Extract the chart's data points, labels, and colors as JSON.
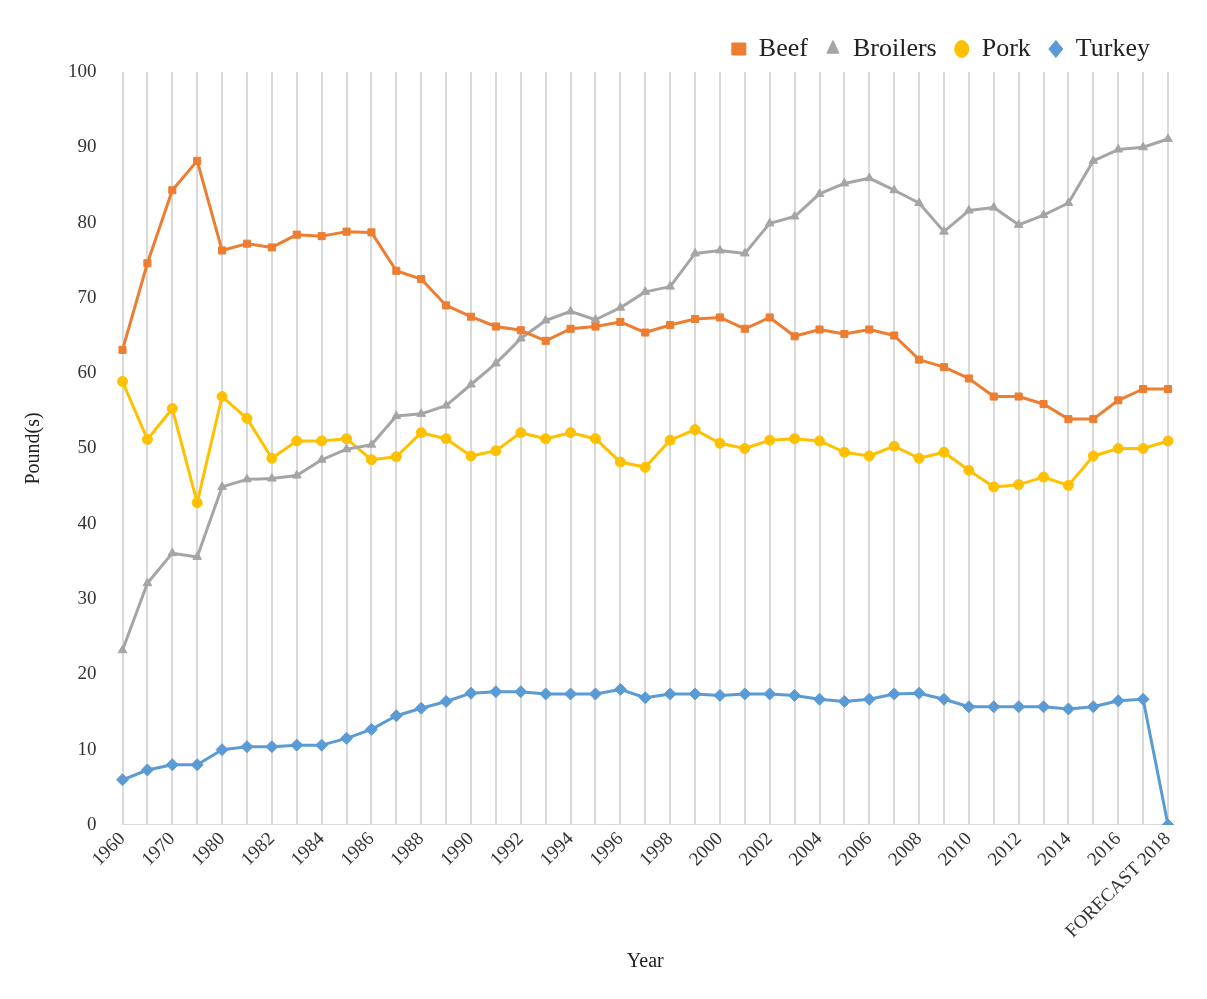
{
  "chart_data": {
    "type": "line",
    "xlabel": "Year",
    "ylabel": "Pound(s)",
    "categories": [
      "1960",
      null,
      "1970",
      null,
      "1980",
      null,
      "1982",
      null,
      "1984",
      null,
      "1986",
      null,
      "1988",
      null,
      "1990",
      null,
      "1992",
      null,
      "1994",
      null,
      "1996",
      null,
      "1998",
      null,
      "2000",
      null,
      "2002",
      null,
      "2004",
      null,
      "2006",
      null,
      "2008",
      null,
      "2010",
      null,
      "2012",
      null,
      "2014",
      null,
      "2016",
      null,
      "FORECAST 2018"
    ],
    "series": [
      {
        "name": "Beef",
        "color": "#ed7d31",
        "marker": "square",
        "values": [
          63.1,
          74.6,
          84.3,
          88.2,
          76.3,
          77.2,
          76.7,
          78.4,
          78.2,
          78.8,
          78.7,
          73.6,
          72.5,
          69.0,
          67.5,
          66.2,
          65.7,
          64.3,
          65.9,
          66.2,
          66.8,
          65.4,
          66.4,
          67.2,
          67.4,
          65.9,
          67.4,
          64.9,
          65.8,
          65.2,
          65.8,
          65.0,
          61.8,
          60.8,
          59.3,
          56.9,
          56.9,
          55.9,
          53.9,
          53.9,
          56.4,
          57.9,
          57.9
        ]
      },
      {
        "name": "Broilers",
        "color": "#a5a5a5",
        "marker": "triangle",
        "values": [
          23.2,
          32.1,
          36.1,
          35.6,
          44.9,
          45.9,
          46.0,
          46.4,
          48.5,
          49.9,
          50.5,
          54.3,
          54.6,
          55.7,
          58.5,
          61.3,
          64.6,
          67.0,
          68.2,
          67.1,
          68.7,
          70.8,
          71.5,
          75.9,
          76.3,
          75.9,
          79.9,
          80.8,
          83.8,
          85.2,
          85.9,
          84.3,
          82.6,
          78.8,
          81.6,
          82.0,
          79.7,
          81.0,
          82.6,
          88.2,
          89.7,
          90.0,
          91.1
        ]
      },
      {
        "name": "Pork",
        "color": "#ffc000",
        "marker": "circle",
        "values": [
          58.9,
          51.2,
          55.3,
          42.8,
          56.9,
          54.0,
          48.7,
          51.0,
          51.0,
          51.3,
          48.5,
          48.9,
          52.1,
          51.3,
          49.0,
          49.7,
          52.1,
          51.3,
          52.1,
          51.3,
          48.2,
          47.5,
          51.1,
          52.5,
          50.7,
          50.0,
          51.1,
          51.3,
          51.0,
          49.5,
          49.0,
          50.3,
          48.7,
          49.5,
          47.1,
          44.9,
          45.2,
          46.2,
          45.1,
          49.0,
          50.0,
          50.0,
          51.0
        ]
      },
      {
        "name": "Turkey",
        "color": "#5b9bd5",
        "marker": "diamond",
        "values": [
          6.0,
          7.3,
          8.0,
          8.0,
          10.0,
          10.4,
          10.4,
          10.6,
          10.6,
          11.5,
          12.7,
          14.5,
          15.5,
          16.4,
          17.5,
          17.7,
          17.7,
          17.4,
          17.4,
          17.4,
          18.0,
          16.9,
          17.4,
          17.4,
          17.2,
          17.4,
          17.4,
          17.2,
          16.7,
          16.4,
          16.7,
          17.4,
          17.5,
          16.7,
          15.7,
          15.7,
          15.7,
          15.7,
          15.4,
          15.7,
          16.5,
          16.7,
          0
        ]
      }
    ],
    "ylim": [
      0,
      100
    ],
    "yticks": [
      0,
      10,
      20,
      30,
      40,
      50,
      60,
      70,
      80,
      90,
      100
    ],
    "grid": "x",
    "legend": "top right"
  }
}
